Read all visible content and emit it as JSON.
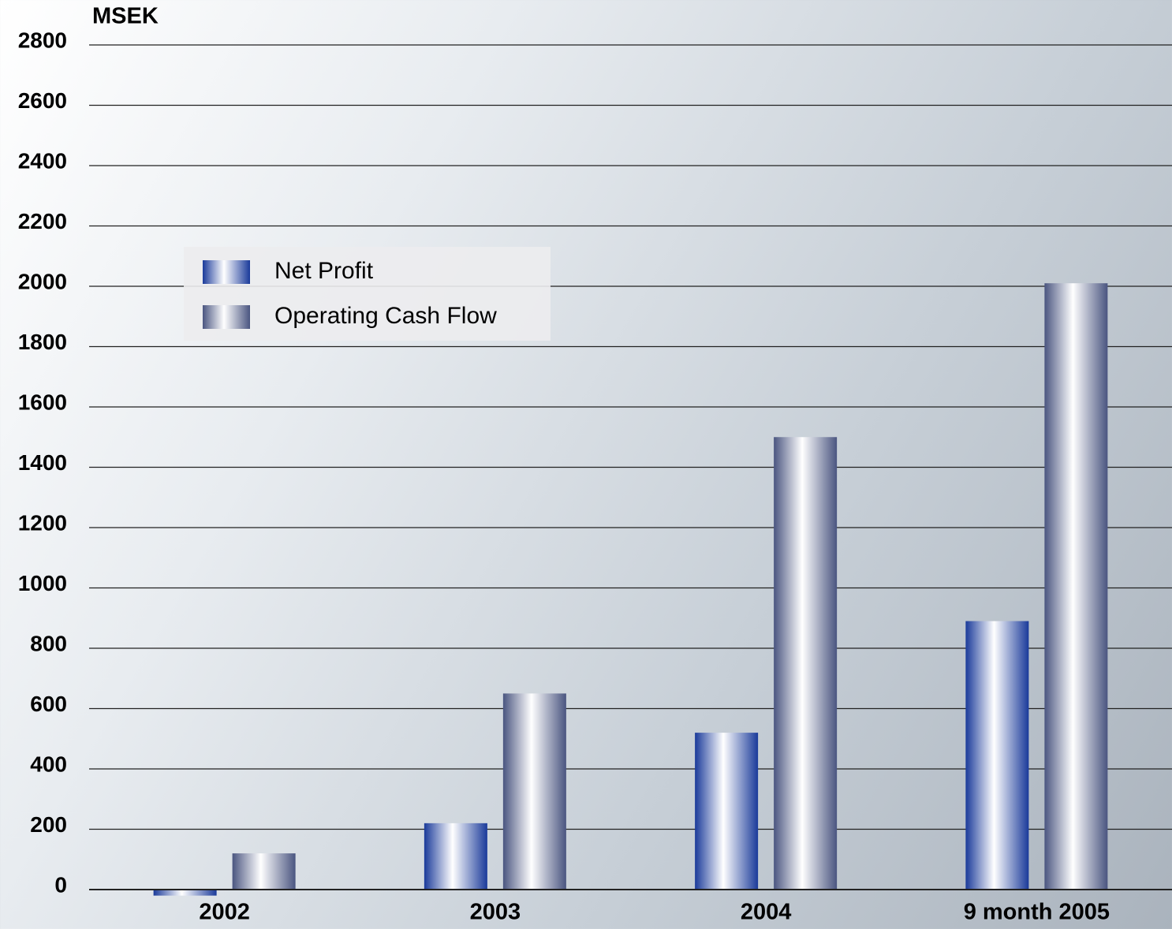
{
  "chart_data": {
    "type": "bar",
    "y_label": "MSEK",
    "categories": [
      "2002",
      "2003",
      "2004",
      "9 month 2005"
    ],
    "series": [
      {
        "name": "Net Profit",
        "color": "#1a3a9a",
        "values": [
          -20,
          220,
          520,
          890
        ]
      },
      {
        "name": "Operating Cash Flow",
        "color": "#4a5580",
        "values": [
          120,
          650,
          1500,
          2010
        ]
      }
    ],
    "ylim": [
      0,
      2800
    ],
    "yticks": [
      0,
      200,
      400,
      600,
      800,
      1000,
      1200,
      1400,
      1600,
      1800,
      2000,
      2200,
      2400,
      2600,
      2800
    ],
    "grid": true,
    "legend": "upper-left"
  }
}
